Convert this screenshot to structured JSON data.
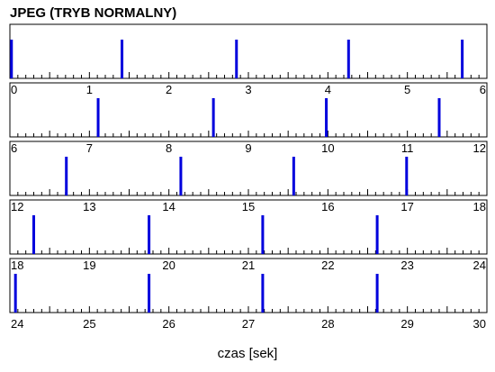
{
  "chart_data": {
    "type": "timeline",
    "title": "JPEG (TRYB NORMALNY)",
    "xlabel": "czas [sek]",
    "rows": [
      {
        "xlim": [
          0,
          6
        ],
        "tick_labels": [
          "0",
          "1",
          "2",
          "3",
          "4",
          "5",
          "6"
        ],
        "events": [
          0.02,
          1.41,
          2.85,
          4.26,
          5.69
        ]
      },
      {
        "xlim": [
          6,
          12
        ],
        "tick_labels": [
          "6",
          "7",
          "8",
          "9",
          "10",
          "11",
          "12"
        ],
        "events": [
          7.11,
          8.56,
          9.98,
          11.4
        ]
      },
      {
        "xlim": [
          12,
          18
        ],
        "tick_labels": [
          "12",
          "13",
          "14",
          "15",
          "16",
          "17",
          "18"
        ],
        "events": [
          12.71,
          14.15,
          15.57,
          16.99
        ]
      },
      {
        "xlim": [
          18,
          24
        ],
        "tick_labels": [
          "18",
          "19",
          "20",
          "21",
          "22",
          "23",
          "24"
        ],
        "events": [
          18.3,
          19.75,
          21.18,
          22.62
        ]
      },
      {
        "xlim": [
          24,
          30
        ],
        "tick_labels": [
          "24",
          "25",
          "26",
          "27",
          "28",
          "29",
          "30"
        ],
        "events": [
          24.07,
          25.75,
          27.18,
          28.62
        ]
      }
    ],
    "minor_ticks_per_unit": 10,
    "grid": false,
    "event_color": "#0000dd"
  }
}
